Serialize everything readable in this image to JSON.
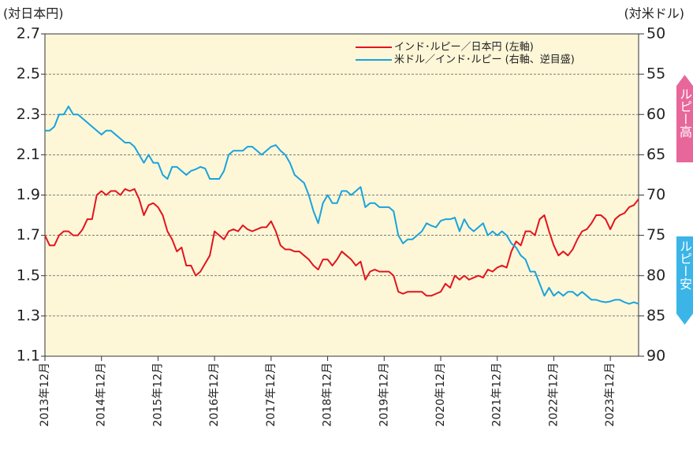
{
  "chart_data": {
    "type": "line",
    "y_label": "(対日本円)",
    "y2_label": "(対米ドル)",
    "annotations": [
      "ルピー高",
      "ルピー安"
    ],
    "categories": [
      "2013年12月",
      null,
      null,
      null,
      null,
      null,
      null,
      null,
      null,
      null,
      null,
      null,
      "2014年12月",
      null,
      null,
      null,
      null,
      null,
      null,
      null,
      null,
      null,
      null,
      null,
      "2015年12月",
      null,
      null,
      null,
      null,
      null,
      null,
      null,
      null,
      null,
      null,
      null,
      "2016年12月",
      null,
      null,
      null,
      null,
      null,
      null,
      null,
      null,
      null,
      null,
      null,
      "2017年12月",
      null,
      null,
      null,
      null,
      null,
      null,
      null,
      null,
      null,
      null,
      null,
      "2018年12月",
      null,
      null,
      null,
      null,
      null,
      null,
      null,
      null,
      null,
      null,
      null,
      "2019年12月",
      null,
      null,
      null,
      null,
      null,
      null,
      null,
      null,
      null,
      null,
      null,
      "2020年12月",
      null,
      null,
      null,
      null,
      null,
      null,
      null,
      null,
      null,
      null,
      null,
      "2021年12月",
      null,
      null,
      null,
      null,
      null,
      null,
      null,
      null,
      null,
      null,
      null,
      "2022年12月",
      null,
      null,
      null,
      null,
      null,
      null,
      null,
      null,
      null,
      null,
      null,
      "2023年12月",
      null,
      null,
      null,
      null,
      null,
      null
    ],
    "series": [
      {
        "name": "インド･ルピー／日本円 (左軸)",
        "color": "#e3141e",
        "axis": "y",
        "values": [
          1.7,
          1.65,
          1.65,
          1.7,
          1.72,
          1.72,
          1.7,
          1.7,
          1.73,
          1.78,
          1.78,
          1.9,
          1.92,
          1.9,
          1.92,
          1.92,
          1.9,
          1.93,
          1.92,
          1.93,
          1.88,
          1.8,
          1.85,
          1.86,
          1.84,
          1.8,
          1.72,
          1.68,
          1.62,
          1.64,
          1.55,
          1.55,
          1.5,
          1.52,
          1.56,
          1.6,
          1.72,
          1.7,
          1.68,
          1.72,
          1.73,
          1.72,
          1.75,
          1.73,
          1.72,
          1.73,
          1.74,
          1.74,
          1.77,
          1.72,
          1.65,
          1.63,
          1.63,
          1.62,
          1.62,
          1.6,
          1.58,
          1.55,
          1.53,
          1.58,
          1.58,
          1.55,
          1.58,
          1.62,
          1.6,
          1.58,
          1.55,
          1.57,
          1.48,
          1.52,
          1.53,
          1.52,
          1.52,
          1.52,
          1.5,
          1.42,
          1.41,
          1.42,
          1.42,
          1.42,
          1.42,
          1.4,
          1.4,
          1.41,
          1.42,
          1.46,
          1.44,
          1.5,
          1.48,
          1.5,
          1.48,
          1.49,
          1.5,
          1.49,
          1.53,
          1.52,
          1.54,
          1.55,
          1.54,
          1.62,
          1.67,
          1.65,
          1.72,
          1.72,
          1.7,
          1.78,
          1.8,
          1.72,
          1.65,
          1.6,
          1.62,
          1.6,
          1.63,
          1.68,
          1.72,
          1.73,
          1.76,
          1.8,
          1.8,
          1.78,
          1.73,
          1.78,
          1.8,
          1.81,
          1.84,
          1.85,
          1.88
        ]
      },
      {
        "name": "米ドル／インド･ルピー (右軸、逆目盛)",
        "color": "#1aa3dc",
        "axis": "y2",
        "values": [
          62,
          62,
          61.5,
          60,
          60,
          59,
          60,
          60,
          60.5,
          61,
          61.5,
          62,
          62.5,
          62,
          62,
          62.5,
          63,
          63.5,
          63.5,
          64,
          65,
          66,
          65,
          66,
          66,
          67.5,
          68,
          66.5,
          66.5,
          67,
          67.5,
          67,
          66.8,
          66.5,
          66.7,
          68,
          68,
          68,
          67,
          65,
          64.5,
          64.5,
          64.5,
          64,
          64,
          64.5,
          65,
          64.5,
          64,
          63.8,
          64.5,
          65,
          66,
          67.5,
          68,
          68.5,
          70,
          72,
          73.5,
          71,
          70,
          71,
          71,
          69.5,
          69.5,
          70,
          69.5,
          69,
          71.5,
          71,
          71,
          71.5,
          71.5,
          71.5,
          72,
          75,
          76,
          75.5,
          75.5,
          75,
          74.5,
          73.5,
          73.8,
          74,
          73.2,
          73,
          73,
          72.8,
          74.5,
          73,
          74,
          74.5,
          74,
          73.5,
          75,
          74.5,
          75,
          74.5,
          75,
          76,
          76.5,
          77.5,
          78,
          79.5,
          79.5,
          81,
          82.5,
          81.5,
          82.5,
          82,
          82.5,
          82,
          82,
          82.5,
          82,
          82.5,
          83,
          83,
          83.2,
          83.3,
          83.2,
          83,
          83,
          83.3,
          83.5,
          83.3,
          83.5
        ]
      }
    ],
    "ylim": [
      1.1,
      2.7
    ],
    "yticks": [
      1.1,
      1.3,
      1.5,
      1.7,
      1.9,
      2.1,
      2.3,
      2.5,
      2.7
    ],
    "y2lim": [
      90,
      50
    ],
    "y2ticks": [
      90,
      85,
      80,
      75,
      70,
      65,
      60,
      55,
      50
    ],
    "grid": true,
    "legend": "top-right",
    "background": "#fdf7d8",
    "annotation_colors": [
      "#e8679a",
      "#3bb5e8"
    ]
  }
}
